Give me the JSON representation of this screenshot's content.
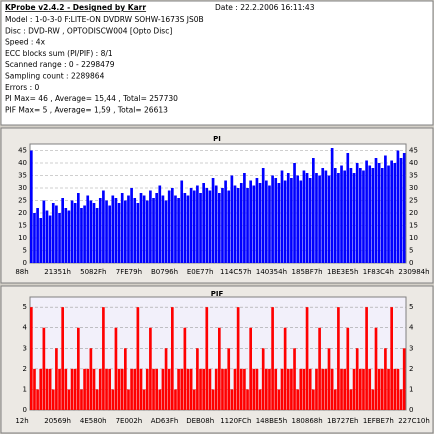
{
  "header": {
    "title": "KProbe v2.4.2 - Designed by Karr",
    "date": "Date : 22.2.2006 16:11:43",
    "lines": [
      "Model : 1-0-3-0 F:LITE-ON DVDRW SOHW-1673S JS0B",
      "Disc : DVD-RW , OPTODISCW004 [Opto Disc]",
      "Speed : 4x",
      "ECC blocks sum (PI/PIF) : 8/1",
      "Scanned range : 0 - 2298479",
      "Sampling count : 2289864",
      "Errors : 0",
      "PI Max= 46 , Average= 15,44 , Total= 257730",
      "PIF Max= 5 , Average= 1,59 , Total= 26613"
    ]
  },
  "chart_data": [
    {
      "type": "bar",
      "title": "PI",
      "color": "#0000ff",
      "title_color": "#0000cc",
      "grid": true,
      "ylim": [
        0,
        46
      ],
      "yticks": [
        0,
        5,
        10,
        15,
        20,
        25,
        30,
        35,
        40,
        45
      ],
      "x_labels": [
        "88h",
        "21351h",
        "5082Fh",
        "7FE79h",
        "B0796h",
        "E0E77h",
        "114C57h",
        "140354h",
        "185BF7h",
        "1BE3E5h",
        "1F83C4h",
        "230984h"
      ],
      "values": [
        45,
        20,
        22,
        18,
        25,
        21,
        19,
        24,
        23,
        20,
        26,
        22,
        21,
        25,
        24,
        28,
        22,
        23,
        27,
        25,
        24,
        22,
        26,
        29,
        25,
        23,
        27,
        26,
        24,
        28,
        25,
        27,
        30,
        26,
        24,
        28,
        27,
        25,
        29,
        26,
        28,
        31,
        27,
        25,
        29,
        30,
        27,
        26,
        33,
        28,
        27,
        30,
        29,
        31,
        28,
        32,
        30,
        29,
        34,
        31,
        28,
        30,
        33,
        29,
        35,
        31,
        30,
        32,
        36,
        30,
        33,
        31,
        34,
        32,
        38,
        33,
        31,
        35,
        34,
        32,
        37,
        33,
        36,
        34,
        40,
        35,
        33,
        37,
        36,
        34,
        42,
        36,
        35,
        38,
        37,
        35,
        46,
        38,
        36,
        39,
        37,
        44,
        38,
        36,
        40,
        38,
        37,
        41,
        39,
        38,
        42,
        40,
        38,
        43,
        39,
        41,
        40,
        45,
        42,
        44
      ]
    },
    {
      "type": "bar",
      "title": "PIF",
      "color": "#ff0000",
      "title_color": "#cc0000",
      "grid": true,
      "ylim": [
        0,
        5.3
      ],
      "yticks": [
        0,
        1,
        2,
        3,
        4,
        5
      ],
      "x_labels": [
        "12h",
        "20569h",
        "4E580h",
        "7E002h",
        "AD63Fh",
        "DEB08h",
        "1120FCh",
        "148BE5h",
        "180868h",
        "1B727Eh",
        "1EFBE7h",
        "227C10h"
      ],
      "values": [
        5,
        2,
        1,
        2,
        4,
        2,
        2,
        1,
        3,
        2,
        5,
        2,
        1,
        2,
        2,
        4,
        1,
        2,
        2,
        3,
        2,
        1,
        2,
        5,
        2,
        2,
        1,
        4,
        2,
        2,
        3,
        1,
        2,
        2,
        5,
        2,
        1,
        2,
        4,
        2,
        2,
        1,
        2,
        3,
        2,
        5,
        1,
        2,
        2,
        4,
        2,
        2,
        1,
        3,
        2,
        2,
        5,
        2,
        1,
        2,
        4,
        2,
        2,
        3,
        1,
        2,
        5,
        2,
        2,
        1,
        4,
        2,
        2,
        1,
        3,
        2,
        2,
        5,
        2,
        1,
        2,
        4,
        2,
        2,
        3,
        1,
        2,
        2,
        5,
        2,
        1,
        2,
        4,
        2,
        2,
        3,
        2,
        1,
        5,
        2,
        2,
        4,
        1,
        2,
        3,
        2,
        2,
        5,
        2,
        1,
        4,
        2,
        2,
        3,
        2,
        5,
        2,
        2,
        1,
        3
      ]
    }
  ]
}
